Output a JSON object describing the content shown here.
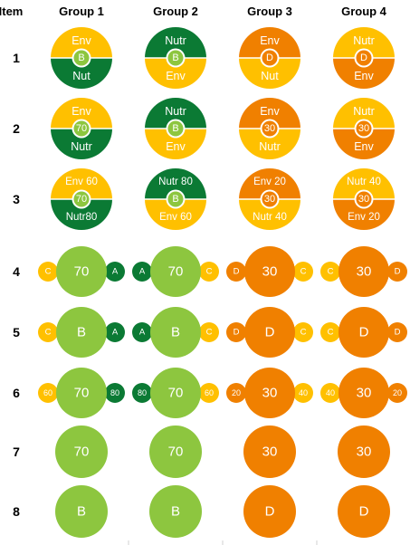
{
  "columns": [
    "Item",
    "Group 1",
    "Group 2",
    "Group 3",
    "Group 4"
  ],
  "rows": [
    {
      "item": "1",
      "cells": [
        {
          "kind": "split",
          "top_color": "#FFC000",
          "bottom_color": "#0B7A34",
          "top_text": "Env",
          "bottom_text": "Nut",
          "center_text": "B",
          "center_color": "#8DC63F"
        },
        {
          "kind": "split",
          "top_color": "#0B7A34",
          "bottom_color": "#FFC000",
          "top_text": "Nutr",
          "bottom_text": "Env",
          "center_text": "B",
          "center_color": "#8DC63F"
        },
        {
          "kind": "split",
          "top_color": "#F08000",
          "bottom_color": "#FFC000",
          "top_text": "Env",
          "bottom_text": "Nut",
          "center_text": "D",
          "center_color": "#F08000"
        },
        {
          "kind": "split",
          "top_color": "#FFC000",
          "bottom_color": "#F08000",
          "top_text": "Nutr",
          "bottom_text": "Env",
          "center_text": "D",
          "center_color": "#F08000"
        }
      ]
    },
    {
      "item": "2",
      "cells": [
        {
          "kind": "split",
          "top_color": "#FFC000",
          "bottom_color": "#0B7A34",
          "top_text": "Env",
          "bottom_text": "Nutr",
          "center_text": "70",
          "center_color": "#8DC63F"
        },
        {
          "kind": "split",
          "top_color": "#0B7A34",
          "bottom_color": "#FFC000",
          "top_text": "Nutr",
          "bottom_text": "Env",
          "center_text": "B",
          "center_color": "#8DC63F"
        },
        {
          "kind": "split",
          "top_color": "#F08000",
          "bottom_color": "#FFC000",
          "top_text": "Env",
          "bottom_text": "Nutr",
          "center_text": "30",
          "center_color": "#F08000"
        },
        {
          "kind": "split",
          "top_color": "#FFC000",
          "bottom_color": "#F08000",
          "top_text": "Nutr",
          "bottom_text": "Env",
          "center_text": "30",
          "center_color": "#F08000"
        }
      ]
    },
    {
      "item": "3",
      "cells": [
        {
          "kind": "split",
          "top_color": "#FFC000",
          "bottom_color": "#0B7A34",
          "top_text": "Env  60",
          "bottom_text": "Nutr80",
          "center_text": "70",
          "center_color": "#8DC63F"
        },
        {
          "kind": "split",
          "top_color": "#0B7A34",
          "bottom_color": "#FFC000",
          "top_text": "Nutr 80",
          "bottom_text": "Env 60",
          "center_text": "B",
          "center_color": "#8DC63F"
        },
        {
          "kind": "split",
          "top_color": "#F08000",
          "bottom_color": "#FFC000",
          "top_text": "Env 20",
          "bottom_text": "Nutr 40",
          "center_text": "30",
          "center_color": "#F08000"
        },
        {
          "kind": "split",
          "top_color": "#FFC000",
          "bottom_color": "#F08000",
          "top_text": "Nutr 40",
          "bottom_text": "Env 20",
          "center_text": "30",
          "center_color": "#F08000"
        }
      ]
    },
    {
      "item": "4",
      "cells": [
        {
          "kind": "trio",
          "main_color": "#8DC63F",
          "main_text": "70",
          "left_color": "#FFC000",
          "left_text": "C",
          "right_color": "#0B7A34",
          "right_text": "A"
        },
        {
          "kind": "trio",
          "main_color": "#8DC63F",
          "main_text": "70",
          "left_color": "#0B7A34",
          "left_text": "A",
          "right_color": "#FFC000",
          "right_text": "C"
        },
        {
          "kind": "trio",
          "main_color": "#F08000",
          "main_text": "30",
          "left_color": "#F08000",
          "left_text": "D",
          "right_color": "#FFC000",
          "right_text": "C"
        },
        {
          "kind": "trio",
          "main_color": "#F08000",
          "main_text": "30",
          "left_color": "#FFC000",
          "left_text": "C",
          "right_color": "#F08000",
          "right_text": "D"
        }
      ]
    },
    {
      "item": "5",
      "cells": [
        {
          "kind": "trio",
          "main_color": "#8DC63F",
          "main_text": "B",
          "left_color": "#FFC000",
          "left_text": "C",
          "right_color": "#0B7A34",
          "right_text": "A"
        },
        {
          "kind": "trio",
          "main_color": "#8DC63F",
          "main_text": "B",
          "left_color": "#0B7A34",
          "left_text": "A",
          "right_color": "#FFC000",
          "right_text": "C"
        },
        {
          "kind": "trio",
          "main_color": "#F08000",
          "main_text": "D",
          "left_color": "#F08000",
          "left_text": "D",
          "right_color": "#FFC000",
          "right_text": "C"
        },
        {
          "kind": "trio",
          "main_color": "#F08000",
          "main_text": "D",
          "left_color": "#FFC000",
          "left_text": "C",
          "right_color": "#F08000",
          "right_text": "D"
        }
      ]
    },
    {
      "item": "6",
      "cells": [
        {
          "kind": "trio",
          "main_color": "#8DC63F",
          "main_text": "70",
          "left_color": "#FFC000",
          "left_text": "60",
          "right_color": "#0B7A34",
          "right_text": "80"
        },
        {
          "kind": "trio",
          "main_color": "#8DC63F",
          "main_text": "70",
          "left_color": "#0B7A34",
          "left_text": "80",
          "right_color": "#FFC000",
          "right_text": "60"
        },
        {
          "kind": "trio",
          "main_color": "#F08000",
          "main_text": "30",
          "left_color": "#F08000",
          "left_text": "20",
          "right_color": "#FFC000",
          "right_text": "40"
        },
        {
          "kind": "trio",
          "main_color": "#F08000",
          "main_text": "30",
          "left_color": "#FFC000",
          "left_text": "40",
          "right_color": "#F08000",
          "right_text": "20"
        }
      ]
    },
    {
      "item": "7",
      "cells": [
        {
          "kind": "single",
          "main_color": "#8DC63F",
          "main_text": "70"
        },
        {
          "kind": "single",
          "main_color": "#8DC63F",
          "main_text": "70"
        },
        {
          "kind": "single",
          "main_color": "#F08000",
          "main_text": "30"
        },
        {
          "kind": "single",
          "main_color": "#F08000",
          "main_text": "30"
        }
      ]
    },
    {
      "item": "8",
      "cells": [
        {
          "kind": "single",
          "main_color": "#8DC63F",
          "main_text": "B"
        },
        {
          "kind": "single",
          "main_color": "#8DC63F",
          "main_text": "B"
        },
        {
          "kind": "single",
          "main_color": "#F08000",
          "main_text": "D"
        },
        {
          "kind": "single",
          "main_color": "#F08000",
          "main_text": "D"
        }
      ]
    }
  ]
}
